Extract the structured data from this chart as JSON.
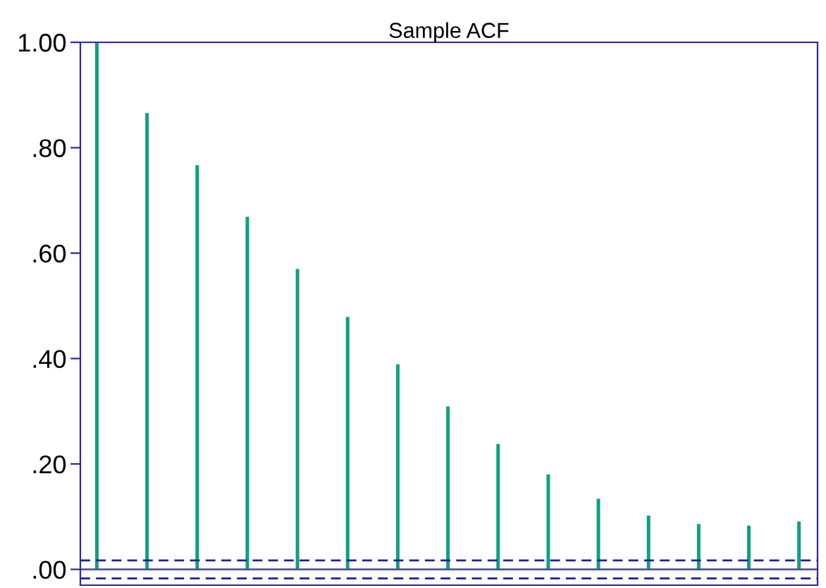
{
  "chart_data": {
    "type": "bar",
    "title": "Sample ACF",
    "categories": [
      null,
      null,
      null,
      null,
      null,
      null,
      null,
      null,
      null,
      null,
      null,
      null,
      null,
      null,
      null
    ],
    "values": [
      1.0,
      0.866,
      0.767,
      0.669,
      0.57,
      0.479,
      0.389,
      0.309,
      0.238,
      0.18,
      0.134,
      0.102,
      0.086,
      0.083,
      0.091
    ],
    "color": "#10a080",
    "ylim": [
      -0.03,
      1.0
    ],
    "yticks": [
      {
        "value": 0,
        "label": ".00"
      },
      {
        "value": 0.2,
        "label": ".20"
      },
      {
        "value": 0.4,
        "label": ".40"
      },
      {
        "value": 0.6,
        "label": ".60"
      },
      {
        "value": 0.8,
        "label": ".80"
      },
      {
        "value": 1.0,
        "label": "1.00"
      }
    ],
    "ref_lines": [
      {
        "axis": "y",
        "value": 0,
        "color": "#5050b0",
        "line_style": "solid"
      },
      {
        "axis": "y",
        "value": 0.017,
        "color": "#202090",
        "line_style": "dashed"
      },
      {
        "axis": "y",
        "value": -0.017,
        "color": "#202090",
        "line_style": "dashed"
      }
    ],
    "grid": false,
    "legend": false,
    "tick_labels": "y"
  }
}
